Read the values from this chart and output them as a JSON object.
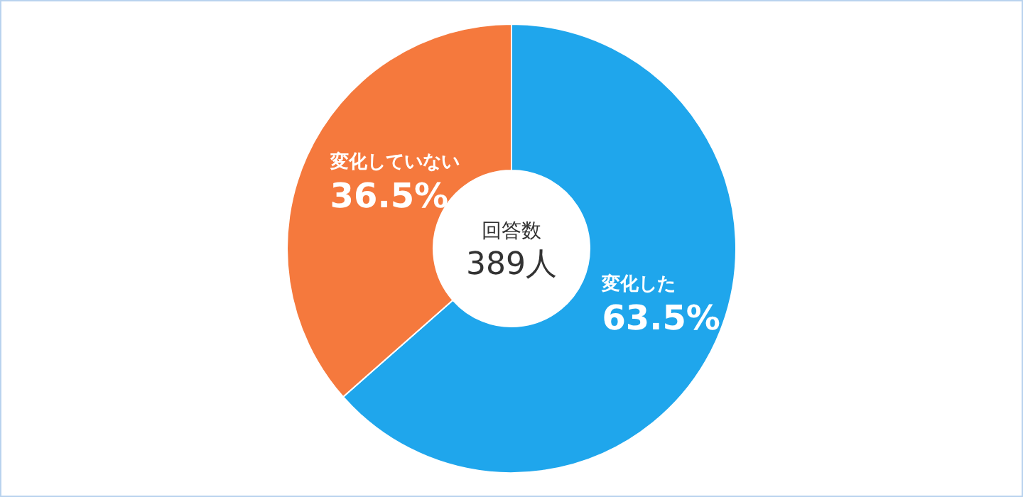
{
  "chart_data": {
    "type": "donut",
    "categories": [
      "変化した",
      "変化していない"
    ],
    "values": [
      63.5,
      36.5
    ],
    "colors": [
      "#1fa6ec",
      "#f5793d"
    ],
    "value_labels": [
      "63.5%",
      "36.5%"
    ],
    "annotations": [
      "回答数",
      "389人"
    ]
  }
}
